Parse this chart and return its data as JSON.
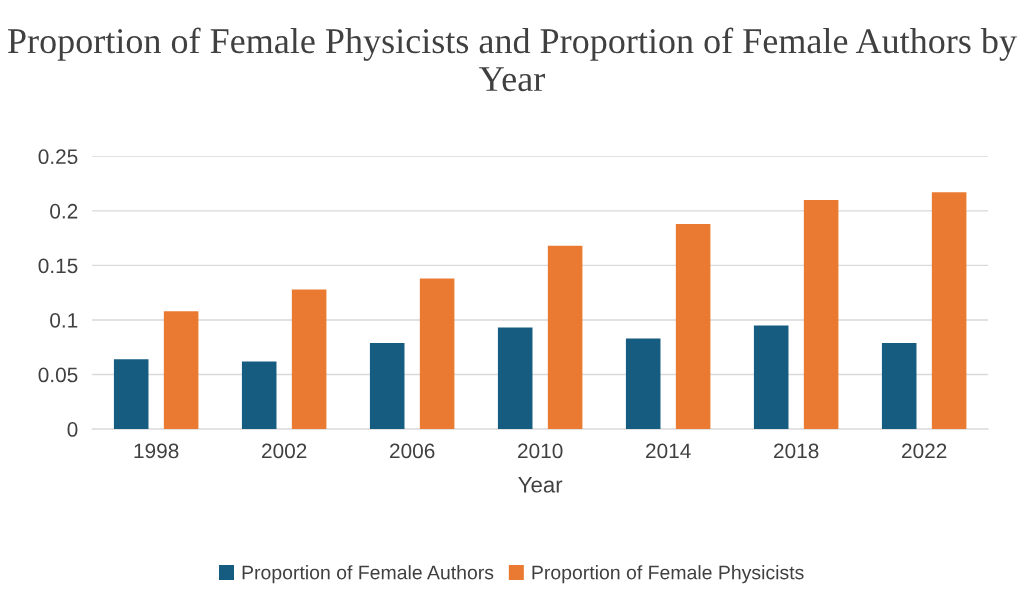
{
  "chart_data": {
    "type": "bar",
    "title": "Proportion of Female Physicists and Proportion of Female Authors by Year",
    "xlabel": "Year",
    "categories": [
      "1998",
      "2002",
      "2006",
      "2010",
      "2014",
      "2018",
      "2022"
    ],
    "series": [
      {
        "name": "Proportion of Female Authors",
        "color": "#155c80",
        "values": [
          0.064,
          0.062,
          0.079,
          0.093,
          0.083,
          0.095,
          0.079
        ]
      },
      {
        "name": "Proportion of Female Physicists",
        "color": "#ea7a32",
        "values": [
          0.108,
          0.128,
          0.138,
          0.168,
          0.188,
          0.21,
          0.217
        ]
      }
    ],
    "ylim": [
      0,
      0.25
    ],
    "yticks": [
      {
        "value": 0,
        "label": "0"
      },
      0.05,
      {
        "value": 0.1,
        "label": "0.1"
      },
      0.15,
      {
        "value": 0.2,
        "label": "0.2"
      },
      0.25
    ],
    "grid": "y",
    "legend": "bottom"
  }
}
